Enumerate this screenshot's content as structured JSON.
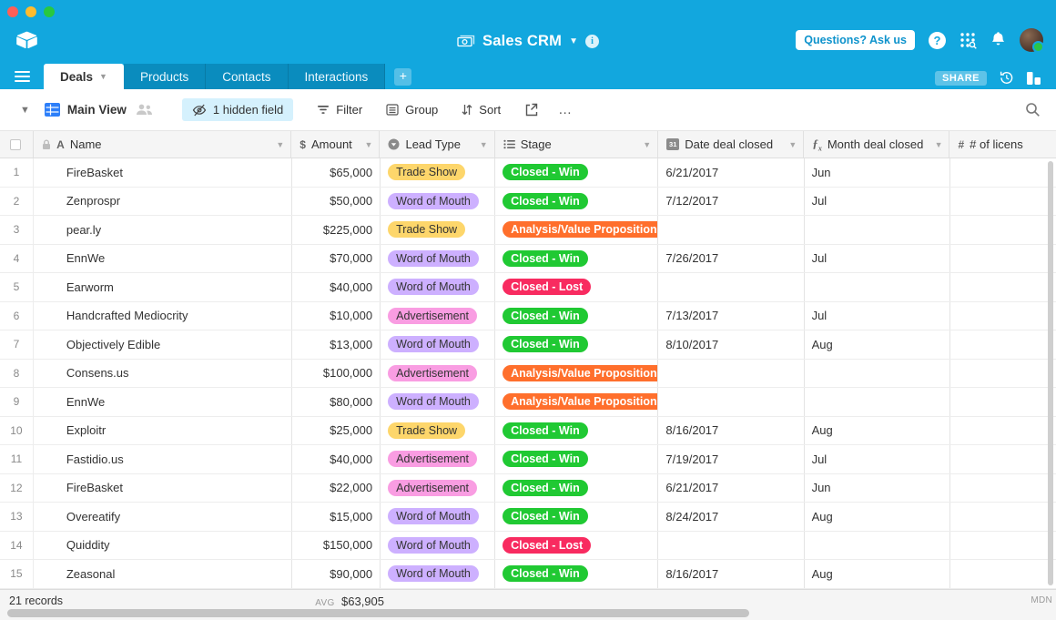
{
  "topbar": {
    "title": "Sales CRM",
    "help_pill_label": "Questions? Ask us",
    "help_glyph": "?",
    "info_glyph": "i"
  },
  "tabbar": {
    "tabs": [
      {
        "label": "Deals",
        "active": true
      },
      {
        "label": "Products",
        "active": false
      },
      {
        "label": "Contacts",
        "active": false
      },
      {
        "label": "Interactions",
        "active": false
      }
    ],
    "add_table_glyph": "+",
    "share_label": "SHARE"
  },
  "toolbar": {
    "view_name": "Main View",
    "hidden_fields_label": "1 hidden field",
    "filter_label": "Filter",
    "group_label": "Group",
    "sort_label": "Sort",
    "more_label": "…"
  },
  "grid": {
    "columns": [
      {
        "key": "name",
        "label": "Name",
        "icon": "text-field-icon"
      },
      {
        "key": "amount",
        "label": "Amount",
        "icon": "currency-icon"
      },
      {
        "key": "lead",
        "label": "Lead Type",
        "icon": "single-select-icon"
      },
      {
        "key": "stage",
        "label": "Stage",
        "icon": "list-icon"
      },
      {
        "key": "date",
        "label": "Date deal closed",
        "icon": "calendar-icon"
      },
      {
        "key": "month",
        "label": "Month deal closed",
        "icon": "formula-icon"
      },
      {
        "key": "licenses",
        "label": "# of licens",
        "icon": "number-icon"
      }
    ],
    "calendar_icon_glyph": "31",
    "rows": [
      {
        "num": "1",
        "name": "FireBasket",
        "amount": "$65,000",
        "lead": "Trade Show",
        "stage": "Closed - Win",
        "date": "6/21/2017",
        "month": "Jun"
      },
      {
        "num": "2",
        "name": "Zenprospr",
        "amount": "$50,000",
        "lead": "Word of Mouth",
        "stage": "Closed - Win",
        "date": "7/12/2017",
        "month": "Jul"
      },
      {
        "num": "3",
        "name": "pear.ly",
        "amount": "$225,000",
        "lead": "Trade Show",
        "stage": "Analysis/Value Proposition",
        "date": "",
        "month": ""
      },
      {
        "num": "4",
        "name": "EnnWe",
        "amount": "$70,000",
        "lead": "Word of Mouth",
        "stage": "Closed - Win",
        "date": "7/26/2017",
        "month": "Jul"
      },
      {
        "num": "5",
        "name": "Earworm",
        "amount": "$40,000",
        "lead": "Word of Mouth",
        "stage": "Closed - Lost",
        "date": "",
        "month": ""
      },
      {
        "num": "6",
        "name": "Handcrafted Mediocrity",
        "amount": "$10,000",
        "lead": "Advertisement",
        "stage": "Closed - Win",
        "date": "7/13/2017",
        "month": "Jul"
      },
      {
        "num": "7",
        "name": "Objectively Edible",
        "amount": "$13,000",
        "lead": "Word of Mouth",
        "stage": "Closed - Win",
        "date": "8/10/2017",
        "month": "Aug"
      },
      {
        "num": "8",
        "name": "Consens.us",
        "amount": "$100,000",
        "lead": "Advertisement",
        "stage": "Analysis/Value Proposition",
        "date": "",
        "month": ""
      },
      {
        "num": "9",
        "name": "EnnWe",
        "amount": "$80,000",
        "lead": "Word of Mouth",
        "stage": "Analysis/Value Proposition",
        "date": "",
        "month": ""
      },
      {
        "num": "10",
        "name": "Exploitr",
        "amount": "$25,000",
        "lead": "Trade Show",
        "stage": "Closed - Win",
        "date": "8/16/2017",
        "month": "Aug"
      },
      {
        "num": "11",
        "name": "Fastidio.us",
        "amount": "$40,000",
        "lead": "Advertisement",
        "stage": "Closed - Win",
        "date": "7/19/2017",
        "month": "Jul"
      },
      {
        "num": "12",
        "name": "FireBasket",
        "amount": "$22,000",
        "lead": "Advertisement",
        "stage": "Closed - Win",
        "date": "6/21/2017",
        "month": "Jun"
      },
      {
        "num": "13",
        "name": "Overeatify",
        "amount": "$15,000",
        "lead": "Word of Mouth",
        "stage": "Closed - Win",
        "date": "8/24/2017",
        "month": "Aug"
      },
      {
        "num": "14",
        "name": "Quiddity",
        "amount": "$150,000",
        "lead": "Word of Mouth",
        "stage": "Closed - Lost",
        "date": "",
        "month": ""
      },
      {
        "num": "15",
        "name": "Zeasonal",
        "amount": "$90,000",
        "lead": "Word of Mouth",
        "stage": "Closed - Win",
        "date": "8/16/2017",
        "month": "Aug"
      }
    ],
    "badge_colors": {
      "Trade Show": {
        "bg": "#FDD66B",
        "fg": "#333333",
        "bold": false
      },
      "Word of Mouth": {
        "bg": "#CDB0FF",
        "fg": "#333333",
        "bold": false
      },
      "Advertisement": {
        "bg": "#F99DE2",
        "fg": "#333333",
        "bold": false
      },
      "Closed - Win": {
        "bg": "#20C933",
        "fg": "#FFFFFF",
        "bold": true
      },
      "Closed - Lost": {
        "bg": "#F82B60",
        "fg": "#FFFFFF",
        "bold": true
      },
      "Analysis/Value Proposition": {
        "bg": "#FF6F2C",
        "fg": "#FFFFFF",
        "bold": true
      }
    }
  },
  "footer": {
    "records_label": "21 records",
    "avg_label": "AVG",
    "avg_value": "$63,905",
    "mdn_label": "MDN"
  },
  "colors": {
    "topbar_cyan": "#12A7DE",
    "tab_inactive": "#0A8CBE",
    "accent_blue": "#2D7FF9",
    "traffic_red": "#FF5F57",
    "traffic_yellow": "#FEBC2E",
    "traffic_green": "#28C840"
  }
}
